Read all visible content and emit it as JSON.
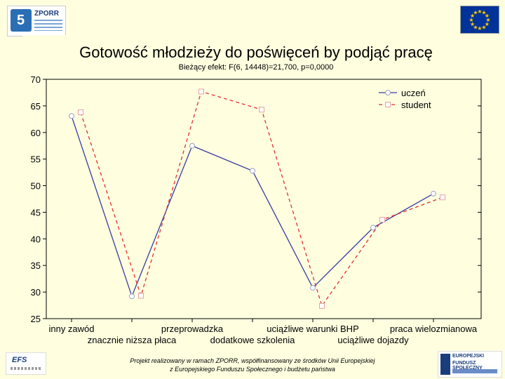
{
  "colors": {
    "series_uczen": "#3a3aa0",
    "series_student": "#e03030",
    "background": "#ffffe0"
  },
  "header": {
    "zporr_logo_text": "ZPORR"
  },
  "chart_data": {
    "type": "line",
    "title": "Gotowość młodzieży do poświęceń by podjąć pracę",
    "subtitle": "Bieżący efekt: F(6, 14448)=21,700, p=0,0000",
    "ylim": [
      25,
      70
    ],
    "yticks": [
      25,
      30,
      35,
      40,
      45,
      50,
      55,
      60,
      65,
      70
    ],
    "categories": [
      "inny zawód",
      "znacznie niższa płaca",
      "przeprowadzka",
      "dodatkowe szkolenia",
      "uciążliwe warunki BHP",
      "uciążliwe dojazdy",
      "praca wielozmianowa"
    ],
    "series": [
      {
        "name": "uczeń",
        "values": [
          63.1,
          29.2,
          57.5,
          52.8,
          30.8,
          42.1,
          48.5
        ]
      },
      {
        "name": "student",
        "values": [
          63.8,
          29.3,
          67.7,
          64.3,
          27.4,
          43.6,
          47.8
        ]
      }
    ]
  },
  "footer": {
    "line1": "Projekt realizowany w ramach ZPORR, współfinansowany ze środków Unii Europejskiej",
    "line2": "z Europejskiego Funduszu Społecznego i budżetu państwa",
    "left_logo": "EFS",
    "right_logo_line1": "EUROPEJSKI",
    "right_logo_line2": "FUNDUSZ SPOŁECZNY"
  }
}
